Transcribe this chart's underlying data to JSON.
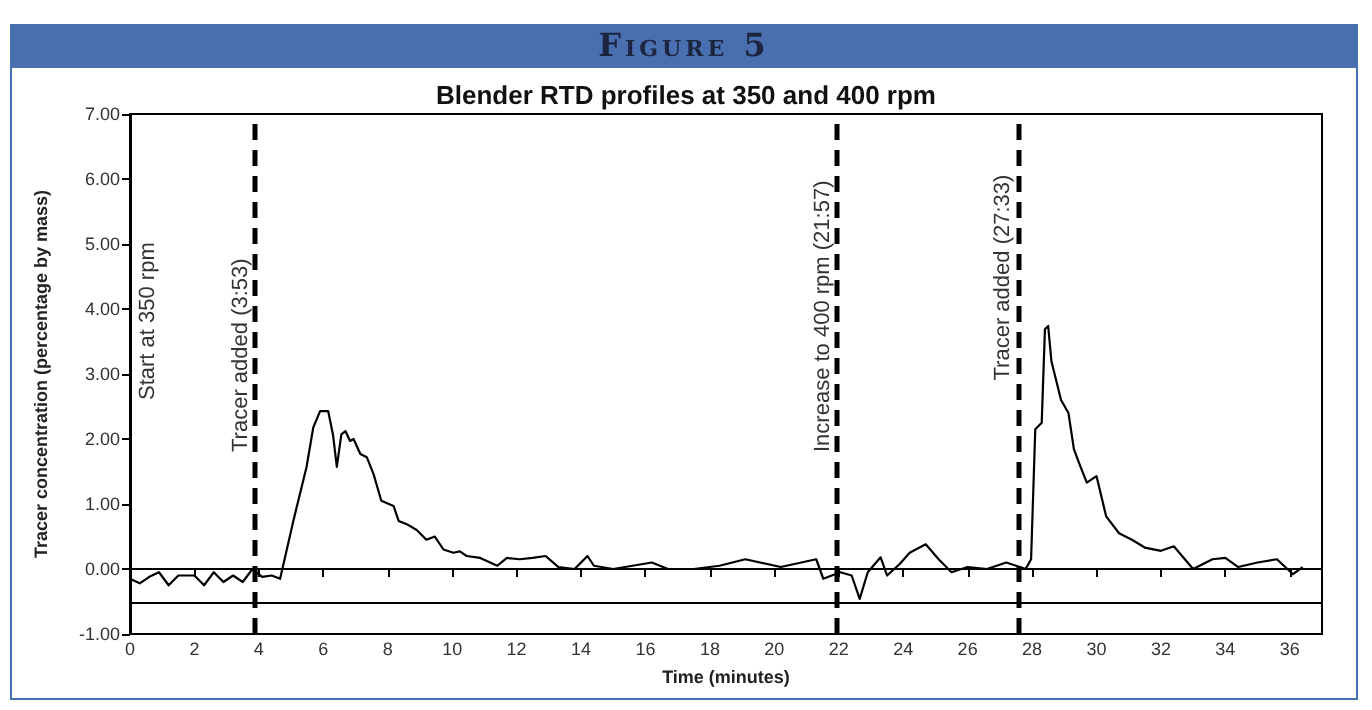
{
  "chart_data": {
    "type": "line",
    "title": "Figure 5",
    "subtitle": "Blender RTD profiles at 350 and 400 rpm",
    "xlabel": "Time (minutes)",
    "ylabel": "Tracer concentration (percentage by mass)",
    "series": [
      {
        "color": "#000000",
        "x": [
          0,
          0.3,
          0.6,
          0.9,
          1.2,
          1.5,
          2,
          2.3,
          2.6,
          2.9,
          3.2,
          3.5,
          3.8,
          4.1,
          4.4,
          4.66,
          5.07,
          5.48,
          5.69,
          5.9,
          6.15,
          6.3,
          6.42,
          6.56,
          6.69,
          6.83,
          6.94,
          7.15,
          7.35,
          7.56,
          7.8,
          8.18,
          8.34,
          8.59,
          8.9,
          9.2,
          9.46,
          9.73,
          10.04,
          10.24,
          10.45,
          10.87,
          11.4,
          11.7,
          12.1,
          12.5,
          12.9,
          13.3,
          13.8,
          14.2,
          14.4,
          15,
          15.6,
          16.2,
          16.7,
          17.5,
          18.3,
          19.1,
          20.2,
          21.3,
          21.52,
          22.05,
          22.4,
          22.65,
          22.9,
          23.3,
          23.5,
          23.9,
          24.2,
          24.7,
          25.1,
          25.5,
          26,
          26.6,
          27.2,
          27.8,
          27.97,
          28.1,
          28.3,
          28.4,
          28.5,
          28.6,
          28.9,
          29.13,
          29.3,
          29.5,
          29.7,
          30,
          30.3,
          30.7,
          31.1,
          31.5,
          32,
          32.4,
          33,
          33.6,
          34,
          34.4,
          35,
          35.6,
          36.1,
          36.4
        ],
        "values": [
          -0.15,
          -0.22,
          -0.12,
          -0.05,
          -0.25,
          -0.1,
          -0.1,
          -0.25,
          -0.05,
          -0.2,
          -0.1,
          -0.2,
          0,
          -0.12,
          -0.1,
          -0.15,
          0.74,
          1.57,
          2.18,
          2.43,
          2.43,
          2.07,
          1.57,
          2.07,
          2.12,
          1.97,
          2,
          1.77,
          1.72,
          1.46,
          1.05,
          0.97,
          0.74,
          0.69,
          0.6,
          0.45,
          0.5,
          0.3,
          0.25,
          0.27,
          0.2,
          0.17,
          0.05,
          0.17,
          0.15,
          0.17,
          0.2,
          0.03,
          0,
          0.2,
          0.05,
          0,
          0.05,
          0.1,
          0,
          0,
          0.05,
          0.15,
          0.03,
          0.15,
          -0.15,
          -0.05,
          -0.1,
          -0.46,
          -0.05,
          0.18,
          -0.1,
          0.08,
          0.25,
          0.38,
          0.15,
          -0.05,
          0.03,
          0,
          0.1,
          0,
          0.15,
          2.15,
          2.25,
          3.69,
          3.74,
          3.2,
          2.6,
          2.4,
          1.84,
          1.58,
          1.33,
          1.43,
          0.81,
          0.55,
          0.45,
          0.33,
          0.28,
          0.35,
          0,
          0.15,
          0.17,
          0.03,
          0.1,
          0.15,
          -0.08,
          0.03
        ]
      }
    ],
    "xlim": [
      0,
      37
    ],
    "xticks": [
      0,
      2,
      4,
      6,
      8,
      10,
      12,
      14,
      16,
      18,
      20,
      22,
      24,
      26,
      28,
      30,
      32,
      34,
      36
    ],
    "ylim": [
      -1,
      7
    ],
    "yticks": [
      {
        "value": -1,
        "label": "-1.00"
      },
      {
        "value": 0,
        "label": "0.00"
      },
      {
        "value": 1,
        "label": "1.00"
      },
      {
        "value": 2,
        "label": "2.00"
      },
      {
        "value": 3,
        "label": "3.00"
      },
      {
        "value": 4,
        "label": "4.00"
      },
      {
        "value": 5,
        "label": "5.00"
      },
      {
        "value": 6,
        "label": "6.00"
      },
      {
        "value": 7,
        "label": "7.00"
      }
    ],
    "ref_lines": [
      {
        "axis": "x",
        "value": 3.88,
        "line_style": "dashed",
        "color": "#000000"
      },
      {
        "axis": "x",
        "value": 21.95,
        "line_style": "dashed",
        "color": "#000000"
      },
      {
        "axis": "x",
        "value": 27.55,
        "line_style": "dashed",
        "color": "#000000"
      },
      {
        "axis": "y",
        "value": -0.5,
        "color": "#000000",
        "line_style": "solid"
      }
    ],
    "annotations": [
      "Start at 350 rpm",
      "Tracer added (3:53)",
      "Increase to 400 rpm (21:57)",
      "Tracer added (27:33)"
    ],
    "grid": false,
    "marker": "none",
    "line_style": "solid"
  }
}
